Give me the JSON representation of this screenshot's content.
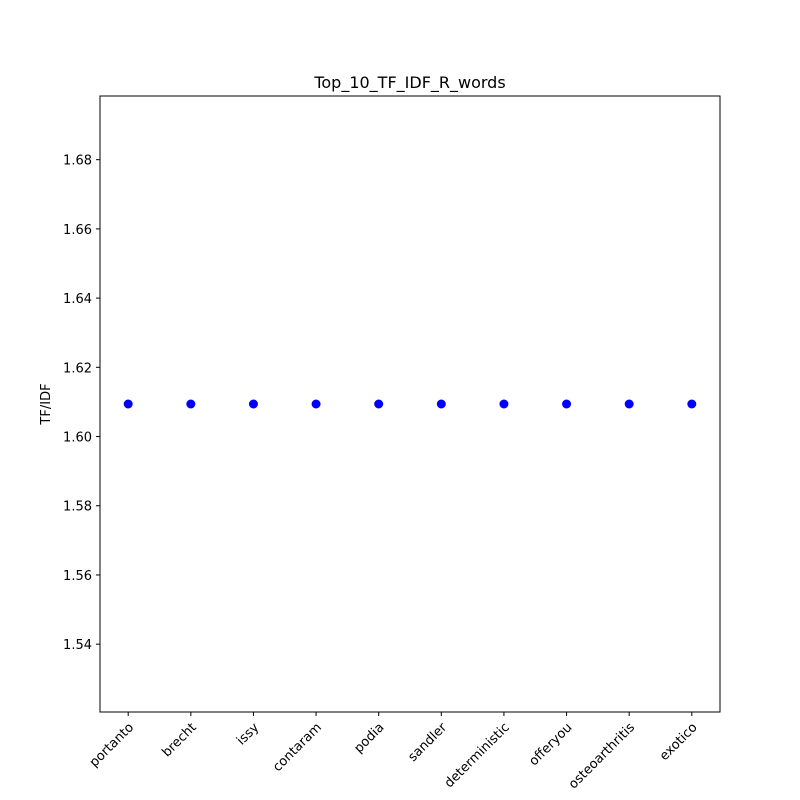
{
  "chart_data": {
    "type": "scatter",
    "title": "Top_10_TF_IDF_R_words",
    "xlabel": "",
    "ylabel": "TF/IDF",
    "categories": [
      "portanto",
      "brecht",
      "issy",
      "contaram",
      "podia",
      "sandler",
      "deterministic",
      "offeryou",
      "osteoarthritis",
      "exotico"
    ],
    "values": [
      1.6094,
      1.6094,
      1.6094,
      1.6094,
      1.6094,
      1.6094,
      1.6094,
      1.6094,
      1.6094,
      1.6094
    ],
    "ylim": [
      1.5204,
      1.6984
    ],
    "yticks": [
      1.54,
      1.56,
      1.58,
      1.6,
      1.62,
      1.64,
      1.66,
      1.68
    ],
    "ytick_labels": [
      "1.54",
      "1.56",
      "1.58",
      "1.60",
      "1.62",
      "1.64",
      "1.66",
      "1.68"
    ],
    "grid": false,
    "legend": "none",
    "marker_color": "#0000ff"
  }
}
